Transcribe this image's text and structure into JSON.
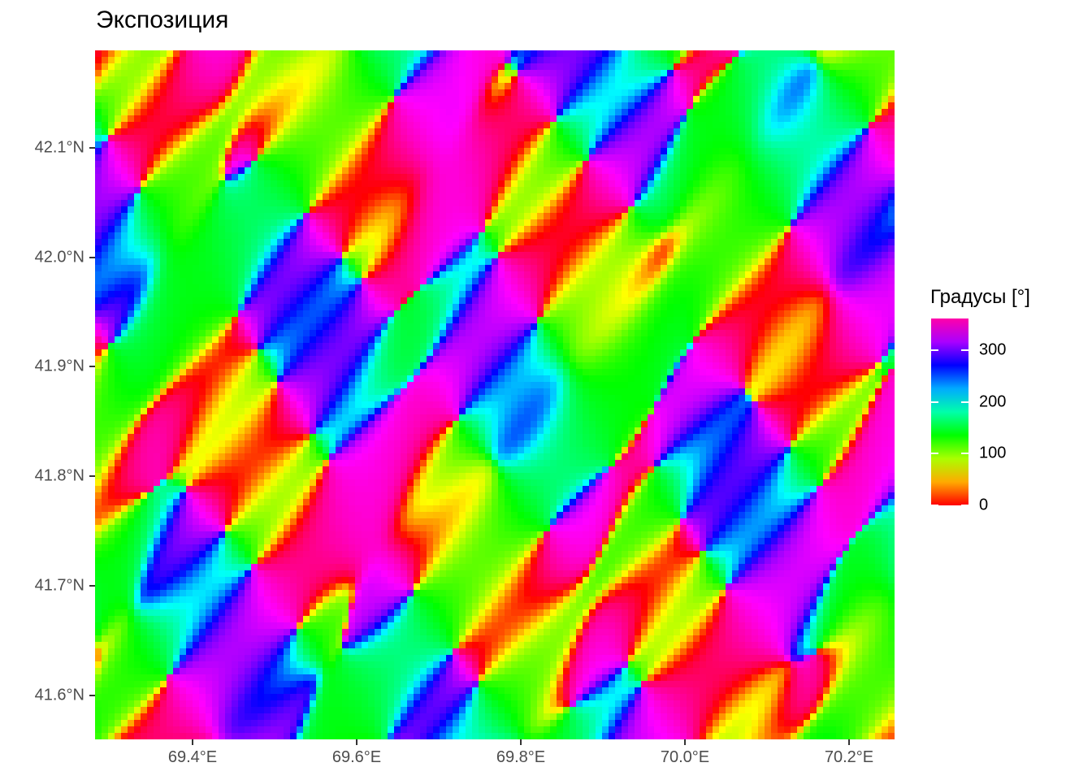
{
  "title": "Экспозиция",
  "legend": {
    "title": "Градусы [°]",
    "labels": [
      "0",
      "100",
      "200",
      "300"
    ],
    "values": [
      0,
      100,
      200,
      300
    ],
    "range": [
      0,
      360
    ],
    "colormap": [
      "#ff0000",
      "#ffaa00",
      "#aaff00",
      "#00ff00",
      "#00ffaa",
      "#00aaff",
      "#0000ff",
      "#aa00ff",
      "#ff00aa"
    ]
  },
  "axes": {
    "x_ticks": [
      "69.4°E",
      "69.6°E",
      "69.8°E",
      "70.0°E",
      "70.2°E"
    ],
    "x_values": [
      69.4,
      69.6,
      69.8,
      70.0,
      70.2
    ],
    "y_ticks": [
      "41.6°N",
      "41.7°N",
      "41.8°N",
      "41.9°N",
      "42.0°N",
      "42.1°N"
    ],
    "y_values": [
      41.6,
      41.7,
      41.8,
      41.9,
      42.0,
      42.1
    ],
    "x_range": [
      69.28,
      70.255
    ],
    "y_range": [
      41.562,
      42.185
    ]
  },
  "chart_data": {
    "type": "heatmap",
    "title": "Экспозиция",
    "value_label": "Градусы [°]",
    "value_range": [
      0,
      360
    ],
    "xlim": [
      69.28,
      70.255
    ],
    "ylim": [
      41.562,
      42.185
    ]
  }
}
